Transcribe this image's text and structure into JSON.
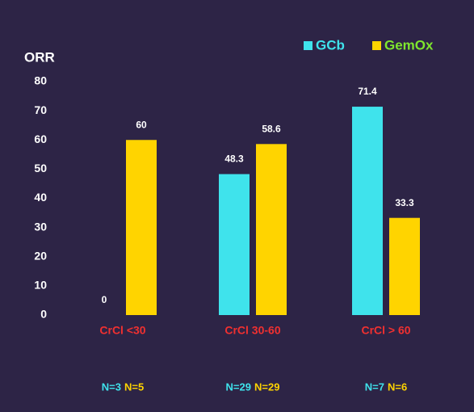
{
  "chart_data": {
    "type": "bar",
    "ylabel": "ORR",
    "categories": [
      "CrCl <30",
      "CrCl 30-60",
      "CrCl > 60"
    ],
    "series": [
      {
        "name": "GCb",
        "color": "#3fe3ec",
        "values": [
          0,
          48.3,
          71.4
        ],
        "n_labels": [
          "N=3",
          "N=29",
          "N=7"
        ]
      },
      {
        "name": "GemOx",
        "color": "#ffd400",
        "values": [
          60,
          58.6,
          33.3
        ],
        "n_labels": [
          "N=5",
          "N=29",
          "N=6"
        ]
      }
    ],
    "ylim": [
      0,
      80
    ],
    "yticks": [
      0,
      10,
      20,
      30,
      40,
      50,
      60,
      70,
      80
    ],
    "grid": false
  }
}
